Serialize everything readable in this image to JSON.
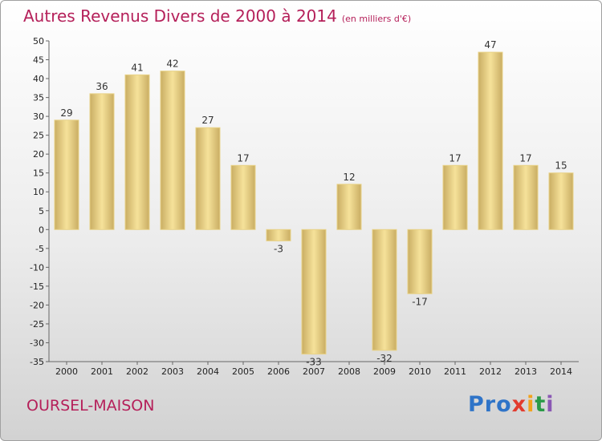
{
  "title": "Autres Revenus Divers de 2000 à 2014",
  "subtitle": "(en milliers d'€)",
  "commune": "OURSEL-MAISON",
  "logo": {
    "p1": "Pro",
    "p2": "x",
    "p3": "i",
    "p4": "t",
    "p5": "i"
  },
  "colors": {
    "title": "#b5205a",
    "bar_light": "#f6e29a",
    "bar_dark": "#c9ad63"
  },
  "chart_data": {
    "type": "bar",
    "title": "Autres Revenus Divers de 2000 à 2014",
    "ylabel": "en milliers d'€",
    "xlabel": "",
    "categories": [
      "2000",
      "2001",
      "2002",
      "2003",
      "2004",
      "2005",
      "2006",
      "2007",
      "2008",
      "2009",
      "2010",
      "2011",
      "2012",
      "2013",
      "2014"
    ],
    "values": [
      29,
      36,
      41,
      42,
      27,
      17,
      -3,
      -33,
      12,
      -32,
      -17,
      17,
      47,
      17,
      15
    ],
    "value_labels": [
      "29",
      "36",
      "41",
      "42",
      "27",
      "17",
      "-3",
      "-33",
      "12",
      "-32",
      "-17",
      "17",
      "47",
      "17",
      "15"
    ],
    "ylim": [
      -35,
      50
    ],
    "yticks": [
      50,
      45,
      40,
      35,
      30,
      25,
      20,
      15,
      10,
      5,
      0,
      -5,
      -10,
      -15,
      -20,
      -25,
      -30,
      -35
    ],
    "grid": false
  }
}
